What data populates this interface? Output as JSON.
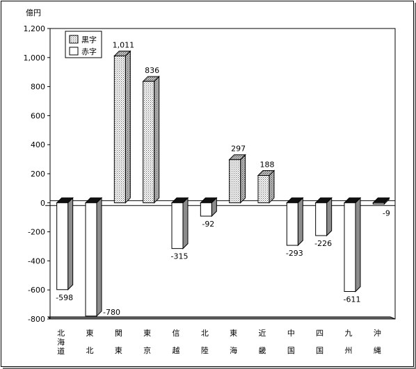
{
  "chart_data": {
    "type": "bar",
    "title": "",
    "unit_label": "億円",
    "ylim": [
      -800,
      1200
    ],
    "yticks": [
      -800,
      -600,
      -400,
      -200,
      0,
      200,
      400,
      600,
      800,
      1000,
      1200
    ],
    "ytick_labels": [
      "-800",
      "-600",
      "-400",
      "-200",
      "0",
      "200",
      "400",
      "600",
      "800",
      "1,000",
      "1,200"
    ],
    "categories": [
      [
        "北",
        "海",
        "道"
      ],
      [
        "東",
        "北"
      ],
      [
        "関",
        "東"
      ],
      [
        "東",
        "京"
      ],
      [
        "信",
        "越"
      ],
      [
        "北",
        "陸"
      ],
      [
        "東",
        "海"
      ],
      [
        "近",
        "畿"
      ],
      [
        "中",
        "国"
      ],
      [
        "四",
        "国"
      ],
      [
        "九",
        "州"
      ],
      [
        "沖",
        "縄"
      ]
    ],
    "values": [
      -598,
      -780,
      1011,
      836,
      -315,
      -92,
      297,
      188,
      -293,
      -226,
      -611,
      -9
    ],
    "value_labels": [
      "-598",
      "-780",
      "1,011",
      "836",
      "-315",
      "-92",
      "297",
      "188",
      "-293",
      "-226",
      "-611",
      "-9"
    ],
    "legend": [
      {
        "name": "黒字",
        "pattern": "dotted"
      },
      {
        "name": "赤字",
        "pattern": "white"
      }
    ],
    "legend_position": "top-left",
    "grid": false,
    "colors": {
      "surplus": "#d9d9d9",
      "deficit": "#ffffff",
      "side": "#8c8c8c",
      "top": "#111111",
      "floor": "#777777"
    }
  }
}
